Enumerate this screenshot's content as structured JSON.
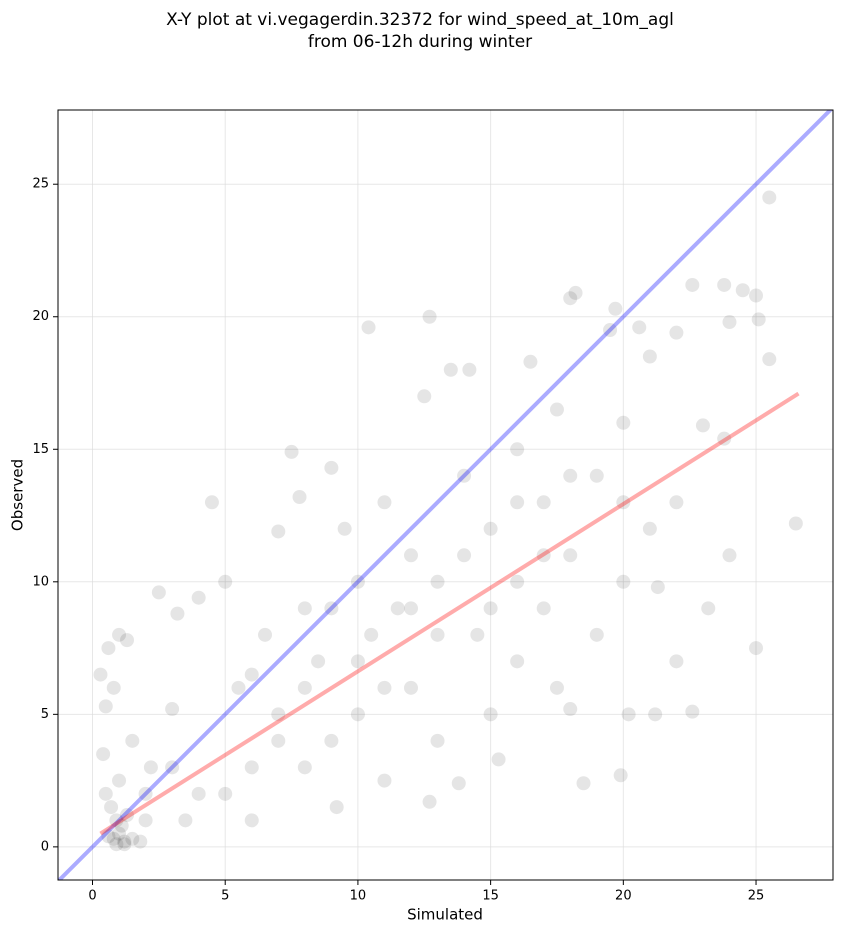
{
  "chart_data": {
    "type": "scatter",
    "title": [
      "X-Y plot at vi.vegagerdin.32372 for wind_speed_at_10m_agl",
      "from 06-12h during winter"
    ],
    "xlabel": "Simulated",
    "ylabel": "Observed",
    "x": [
      0.8,
      1,
      1.2,
      0.9,
      1.1,
      0.6,
      1.3,
      0.7,
      1.5,
      0.5,
      1,
      0.4,
      0.5,
      0.6,
      1,
      1.3,
      0.8,
      1.8,
      2,
      2.2,
      2.5,
      1.5,
      0.3,
      1.2,
      0.9,
      3,
      3.5,
      4,
      4.5,
      4,
      3.2,
      5,
      5.5,
      6,
      6.5,
      7,
      7.5,
      7,
      7.8,
      8,
      8.5,
      8,
      9,
      9.5,
      9.2,
      10,
      10.5,
      10.4,
      10,
      11,
      11.5,
      11,
      12,
      12,
      12.7,
      12.5,
      13,
      13.5,
      13,
      12.7,
      13.8,
      14,
      14.2,
      14.5,
      15,
      15,
      15.3,
      16,
      16,
      16.5,
      16,
      17,
      17,
      17.5,
      17.5,
      18,
      18.2,
      18,
      18.5,
      18,
      19,
      19,
      19.5,
      19.7,
      19.9,
      20,
      20,
      20.2,
      20.6,
      21,
      21,
      21.2,
      21.3,
      22,
      22,
      22,
      22.6,
      22.6,
      23,
      23.2,
      23.8,
      23.8,
      24,
      24,
      24.5,
      25,
      25,
      25.1,
      25.5,
      25.5,
      26.5,
      6,
      9,
      7,
      8,
      10,
      11,
      5,
      3,
      2,
      6,
      9,
      14,
      15,
      13,
      12,
      16,
      18,
      20,
      17
    ],
    "values": [
      0.3,
      0.5,
      0.2,
      1,
      0.8,
      0.4,
      1.2,
      1.5,
      0.3,
      2,
      2.5,
      3.5,
      5.3,
      7.5,
      8,
      7.8,
      6,
      0.2,
      1,
      3,
      9.6,
      4,
      6.5,
      0.1,
      0.1,
      5.2,
      1,
      2,
      13,
      9.4,
      8.8,
      10,
      6,
      3,
      8,
      5,
      14.9,
      11.9,
      13.2,
      9,
      7,
      3,
      14.3,
      12,
      1.5,
      10,
      8,
      19.6,
      5,
      13,
      9,
      2.5,
      11,
      6,
      20,
      17,
      10,
      18,
      4,
      1.7,
      2.4,
      14,
      18,
      8,
      12,
      5,
      3.3,
      15,
      10,
      18.3,
      7,
      13,
      9,
      16.5,
      6,
      20.7,
      20.9,
      11,
      2.4,
      5.2,
      14,
      8,
      19.5,
      20.3,
      2.7,
      16,
      10,
      5,
      19.6,
      12,
      18.5,
      5,
      9.8,
      19.4,
      13,
      7,
      21.2,
      5.1,
      15.9,
      9,
      21.2,
      15.4,
      11,
      19.8,
      21,
      20.8,
      7.5,
      19.9,
      24.5,
      18.4,
      12.2,
      6.5,
      9,
      4,
      6,
      7,
      6,
      2,
      3,
      2,
      1,
      4,
      11,
      9,
      8,
      9,
      13,
      14,
      13,
      11
    ],
    "point_color": "#000000",
    "point_opacity": 0.1,
    "identity_line": {
      "x": [
        -1.3,
        27.9
      ],
      "y": [
        -1.3,
        27.9
      ],
      "color": "#0000ff"
    },
    "fit_line": {
      "x": [
        0.3,
        26.6
      ],
      "y": [
        0.5,
        17.1
      ],
      "color": "#ff0000"
    },
    "xlim": [
      -1.3,
      27.9
    ],
    "ylim": [
      -1.25,
      27.8
    ],
    "xticks": [
      0,
      5,
      10,
      15,
      20,
      25
    ],
    "yticks": [
      0,
      5,
      10,
      15,
      20,
      25
    ],
    "grid": true
  }
}
